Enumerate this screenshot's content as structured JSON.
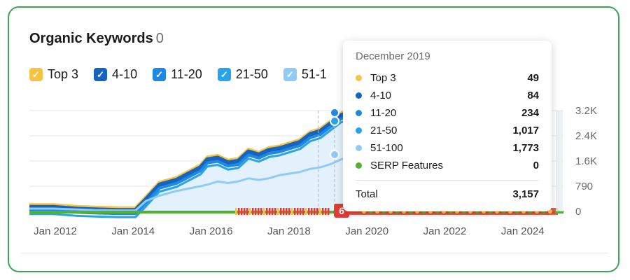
{
  "widget": {
    "title": "Organic Keywords",
    "count": "0"
  },
  "legend": [
    {
      "label": "Top 3",
      "color": "#f7c342"
    },
    {
      "label": "4-10",
      "color": "#1565c0"
    },
    {
      "label": "11-20",
      "color": "#1e88e5"
    },
    {
      "label": "21-50",
      "color": "#29a3e8"
    },
    {
      "label": "51-1",
      "color": "#90caf9"
    }
  ],
  "tooltip": {
    "date": "December 2019",
    "rows": [
      {
        "label": "Top 3",
        "value": "49",
        "color": "#f7c342"
      },
      {
        "label": "4-10",
        "value": "84",
        "color": "#1565c0"
      },
      {
        "label": "11-20",
        "value": "234",
        "color": "#1e88e5"
      },
      {
        "label": "21-50",
        "value": "1,017",
        "color": "#29a3e8"
      },
      {
        "label": "51-100",
        "value": "1,773",
        "color": "#90caf9"
      },
      {
        "label": "SERP Features",
        "value": "0",
        "color": "#52b033"
      }
    ],
    "total_label": "Total",
    "total_value": "3,157"
  },
  "chart_data": {
    "type": "area",
    "x_ticks": [
      "Jan 2012",
      "Jan 2014",
      "Jan 2016",
      "Jan 2018",
      "Jan 2020",
      "Jan 2022",
      "Jan 2024"
    ],
    "y_ticks": [
      "3.2K",
      "2.4K",
      "1.6K",
      "790",
      "0"
    ],
    "ylim": [
      0,
      3200
    ],
    "xlim": [
      "2011-11",
      "2024-11"
    ],
    "grid": true,
    "marker_badge": "6",
    "x": [
      "2011-11",
      "2012-06",
      "2013-01",
      "2013-06",
      "2014-01",
      "2014-06",
      "2014-09",
      "2015-01",
      "2015-06",
      "2016-01",
      "2016-03",
      "2016-06",
      "2016-09",
      "2016-12",
      "2017-03",
      "2017-06",
      "2017-09",
      "2017-12",
      "2018-03",
      "2018-06",
      "2018-09",
      "2018-12",
      "2019-03",
      "2019-06",
      "2019-09",
      "2019-12"
    ],
    "series": [
      {
        "name": "51-100",
        "color": "#90caf9",
        "values": [
          90,
          90,
          60,
          40,
          30,
          30,
          330,
          500,
          650,
          800,
          850,
          950,
          900,
          950,
          1050,
          1000,
          1050,
          1150,
          1200,
          1250,
          1350,
          1400,
          1500,
          1650,
          1750,
          1773
        ]
      },
      {
        "name": "total",
        "color": "#1e88e5",
        "values": [
          140,
          140,
          80,
          60,
          40,
          40,
          380,
          850,
          1000,
          1400,
          1650,
          1700,
          1550,
          1600,
          1900,
          1800,
          1950,
          2000,
          2100,
          2200,
          2450,
          2550,
          2800,
          3050,
          3150,
          3157
        ]
      }
    ]
  }
}
